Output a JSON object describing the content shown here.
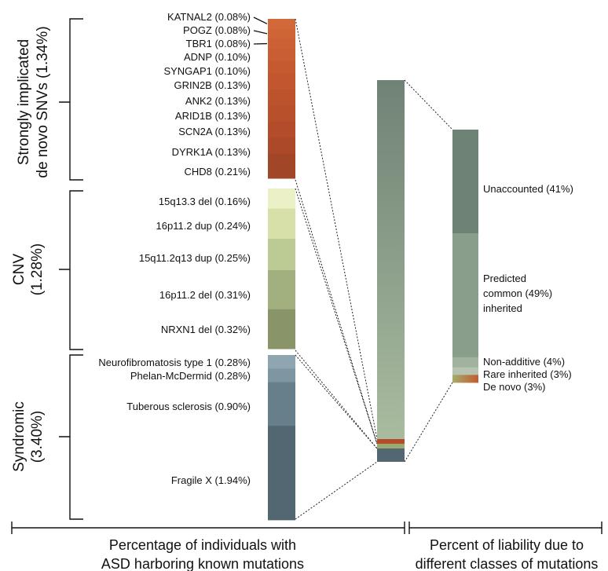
{
  "chart_data": [
    {
      "type": "stacked-bar",
      "xlabel_lines": [
        "Percentage of individuals with",
        "ASD harboring known mutations"
      ],
      "groups": [
        {
          "label_lines": [
            "Strongly implicated",
            "de novo SNVs (1.34%)"
          ],
          "total": 1.34,
          "segments": [
            {
              "label": "KATNAL2 (0.08%)",
              "value": 0.08,
              "color": "#d2693a"
            },
            {
              "label": "POGZ (0.08%)",
              "value": 0.08,
              "color": "#cf6537"
            },
            {
              "label": "TBR1 (0.08%)",
              "value": 0.08,
              "color": "#cc6135"
            },
            {
              "label": "ADNP (0.10%)",
              "value": 0.1,
              "color": "#c95e33"
            },
            {
              "label": "SYNGAP1 (0.10%)",
              "value": 0.1,
              "color": "#c55a31"
            },
            {
              "label": "GRIN2B (0.13%)",
              "value": 0.13,
              "color": "#c2572f"
            },
            {
              "label": "ANK2 (0.13%)",
              "value": 0.13,
              "color": "#bd532d"
            },
            {
              "label": "ARID1B (0.13%)",
              "value": 0.13,
              "color": "#b8502c"
            },
            {
              "label": "SCN2A (0.13%)",
              "value": 0.13,
              "color": "#b24c2a"
            },
            {
              "label": "DYRK1A (0.13%)",
              "value": 0.13,
              "color": "#ab4929"
            },
            {
              "label": "CHD8 (0.21%)",
              "value": 0.21,
              "color": "#a24628"
            }
          ]
        },
        {
          "label_lines": [
            "CNV",
            "(1.28%)"
          ],
          "total": 1.28,
          "segments": [
            {
              "label": "15q13.3 del (0.16%)",
              "value": 0.16,
              "color": "#ecf0c6"
            },
            {
              "label": "16p11.2 dup (0.24%)",
              "value": 0.24,
              "color": "#d6e0a8"
            },
            {
              "label": "15q11.2q13 dup (0.25%)",
              "value": 0.25,
              "color": "#bccb93"
            },
            {
              "label": "16p11.2 del (0.31%)",
              "value": 0.31,
              "color": "#a1b07e"
            },
            {
              "label": "NRXN1 del (0.32%)",
              "value": 0.32,
              "color": "#899568"
            }
          ]
        },
        {
          "label_lines": [
            "Syndromic",
            "(3.40%)"
          ],
          "total": 3.4,
          "segments": [
            {
              "label": "Neurofibromatosis type 1 (0.28%)",
              "value": 0.28,
              "color": "#8fa6b0"
            },
            {
              "label": "Phelan-McDermid (0.28%)",
              "value": 0.28,
              "color": "#7d96a1"
            },
            {
              "label": "Tuberous sclerosis (0.90%)",
              "value": 0.9,
              "color": "#667f8b"
            },
            {
              "label": "Fragile X (1.94%)",
              "value": 1.94,
              "color": "#536773"
            }
          ]
        }
      ]
    },
    {
      "type": "stacked-bar",
      "xlabel_lines": [
        "Percent of liability due to",
        "different classes of mutations"
      ],
      "segments": [
        {
          "label": "Unaccounted (41%)",
          "value": 41,
          "color": "#6e8375"
        },
        {
          "label": "Predicted common (49%) inherited",
          "label_lines": [
            "Predicted",
            "common  (49%)",
            "inherited"
          ],
          "value": 49,
          "color": "#8a9e8c"
        },
        {
          "label": "Non-additive (4%)",
          "value": 4,
          "color": "#a1b29f"
        },
        {
          "label": "Rare inherited (3%)",
          "value": 3,
          "color": "#b6c3b0"
        },
        {
          "label": "De novo  (3%)",
          "value": 3,
          "color": "#c8632f"
        }
      ]
    }
  ]
}
